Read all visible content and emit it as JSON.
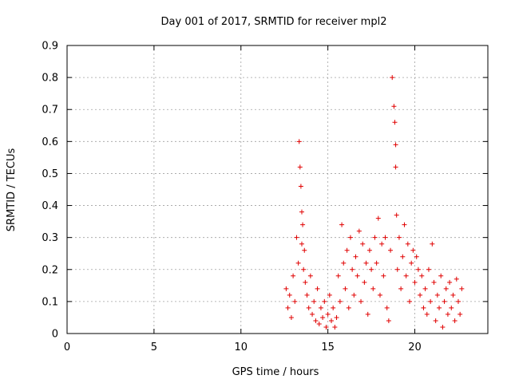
{
  "chart_data": {
    "type": "scatter",
    "title": "Day 001 of 2017, SRMTID for receiver mpl2",
    "xlabel": "GPS time / hours",
    "ylabel": "SRMTID / TECUs",
    "xlim": [
      0,
      24.2
    ],
    "ylim": [
      0,
      0.9
    ],
    "xticks": [
      0,
      5,
      10,
      15,
      20
    ],
    "xtick_labels": [
      "0",
      "5",
      "10",
      "15",
      "20"
    ],
    "yticks": [
      0,
      0.1,
      0.2,
      0.3,
      0.4,
      0.5,
      0.6,
      0.7,
      0.8,
      0.9
    ],
    "ytick_labels": [
      "0",
      "0.1",
      "0.2",
      "0.3",
      "0.4",
      "0.5",
      "0.6",
      "0.7",
      "0.8",
      "0.9"
    ],
    "grid": true,
    "marker": "+",
    "color": "#e00000",
    "series": [
      {
        "name": "mpl2",
        "x": [
          12.6,
          12.7,
          12.8,
          12.9,
          13.0,
          13.1,
          13.2,
          13.3,
          13.35,
          13.4,
          13.45,
          13.5,
          13.5,
          13.55,
          13.6,
          13.65,
          13.7,
          13.8,
          13.9,
          14.0,
          14.1,
          14.2,
          14.3,
          14.4,
          14.5,
          14.6,
          14.7,
          14.8,
          14.9,
          15.0,
          15.1,
          15.2,
          15.3,
          15.4,
          15.5,
          15.6,
          15.7,
          15.8,
          15.9,
          16.0,
          16.1,
          16.2,
          16.3,
          16.4,
          16.5,
          16.6,
          16.7,
          16.8,
          16.9,
          17.0,
          17.1,
          17.2,
          17.3,
          17.4,
          17.5,
          17.6,
          17.7,
          17.8,
          17.9,
          18.0,
          18.1,
          18.2,
          18.3,
          18.4,
          18.5,
          18.6,
          18.7,
          18.8,
          18.85,
          18.9,
          18.9,
          18.95,
          19.0,
          19.1,
          19.2,
          19.3,
          19.4,
          19.5,
          19.6,
          19.7,
          19.8,
          19.9,
          20.0,
          20.1,
          20.2,
          20.3,
          20.4,
          20.5,
          20.6,
          20.7,
          20.8,
          20.9,
          21.0,
          21.1,
          21.2,
          21.3,
          21.4,
          21.5,
          21.6,
          21.7,
          21.8,
          21.9,
          22.0,
          22.1,
          22.2,
          22.3,
          22.4,
          22.5,
          22.6,
          22.7
        ],
        "y": [
          0.14,
          0.08,
          0.12,
          0.05,
          0.18,
          0.1,
          0.3,
          0.22,
          0.6,
          0.52,
          0.46,
          0.38,
          0.28,
          0.34,
          0.2,
          0.26,
          0.16,
          0.12,
          0.08,
          0.18,
          0.06,
          0.1,
          0.04,
          0.14,
          0.03,
          0.08,
          0.05,
          0.1,
          0.02,
          0.06,
          0.12,
          0.04,
          0.08,
          0.02,
          0.05,
          0.18,
          0.1,
          0.34,
          0.22,
          0.14,
          0.26,
          0.08,
          0.3,
          0.2,
          0.12,
          0.24,
          0.18,
          0.32,
          0.1,
          0.28,
          0.16,
          0.22,
          0.06,
          0.26,
          0.2,
          0.14,
          0.3,
          0.22,
          0.36,
          0.12,
          0.28,
          0.18,
          0.3,
          0.08,
          0.04,
          0.26,
          0.8,
          0.71,
          0.66,
          0.59,
          0.52,
          0.37,
          0.2,
          0.3,
          0.14,
          0.24,
          0.34,
          0.18,
          0.28,
          0.1,
          0.22,
          0.26,
          0.16,
          0.24,
          0.2,
          0.12,
          0.18,
          0.08,
          0.14,
          0.06,
          0.2,
          0.1,
          0.28,
          0.16,
          0.04,
          0.12,
          0.08,
          0.18,
          0.02,
          0.1,
          0.14,
          0.06,
          0.16,
          0.08,
          0.12,
          0.04,
          0.17,
          0.1,
          0.06,
          0.14
        ]
      }
    ]
  }
}
